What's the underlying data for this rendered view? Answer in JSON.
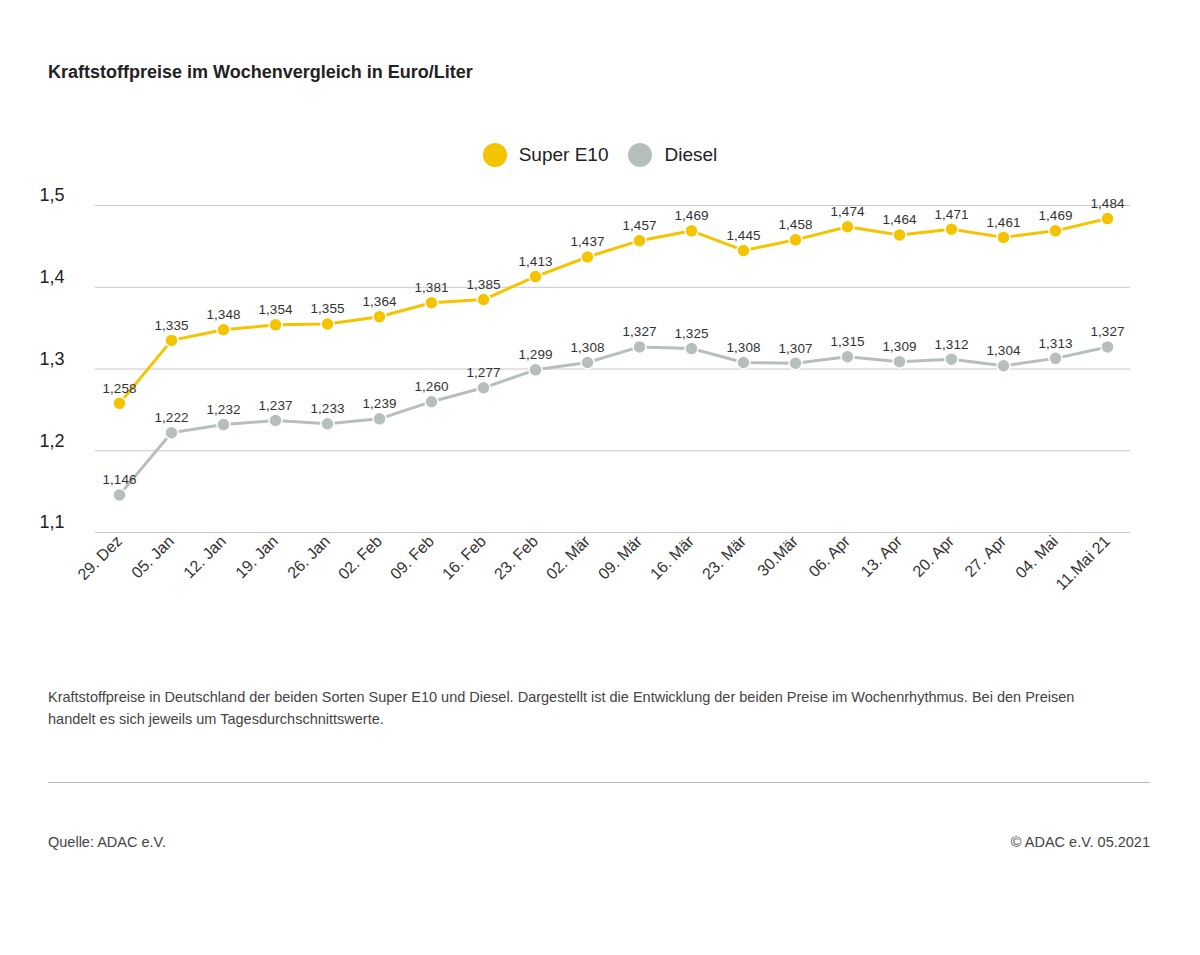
{
  "chart_data": {
    "type": "line",
    "title": "Kraftstoffpreise im Wochenvergleich in Euro/Liter",
    "caption": "Kraftstoffpreise in Deutschland der beiden Sorten Super E10 und Diesel. Dargestellt ist die Entwicklung der beiden Preise im Wochenrhythmus. Bei den Preisen handelt es sich jeweils um Tagesdurchschnittswerte.",
    "source": "Quelle: ADAC e.V.",
    "copyright": "© ADAC e.V. 05.2021",
    "categories": [
      "29. Dez",
      "05. Jan",
      "12. Jan",
      "19. Jan",
      "26. Jan",
      "02. Feb",
      "09. Feb",
      "16. Feb",
      "23. Feb",
      "02. Mär",
      "09. Mär",
      "16. Mär",
      "23. Mär",
      "30.Mär",
      "06. Apr",
      "13. Apr",
      "20. Apr",
      "27. Apr",
      "04. Mai",
      "11.Mai 21"
    ],
    "series": [
      {
        "name": "Super E10",
        "color": "#f5c400",
        "marker": "circle",
        "values": [
          1.258,
          1.335,
          1.348,
          1.354,
          1.355,
          1.364,
          1.381,
          1.385,
          1.413,
          1.437,
          1.457,
          1.469,
          1.445,
          1.458,
          1.474,
          1.464,
          1.471,
          1.461,
          1.469,
          1.484
        ],
        "value_labels": [
          "1,258",
          "1,335",
          "1,348",
          "1,354",
          "1,355",
          "1,364",
          "1,381",
          "1,385",
          "1,413",
          "1,437",
          "1,457",
          "1,469",
          "1,445",
          "1,458",
          "1,474",
          "1,464",
          "1,471",
          "1,461",
          "1,469",
          "1,484"
        ]
      },
      {
        "name": "Diesel",
        "color": "#b7bfbe",
        "marker": "circle",
        "values": [
          1.146,
          1.222,
          1.232,
          1.237,
          1.233,
          1.239,
          1.26,
          1.277,
          1.299,
          1.308,
          1.327,
          1.325,
          1.308,
          1.307,
          1.315,
          1.309,
          1.312,
          1.304,
          1.313,
          1.327
        ],
        "value_labels": [
          "1,146",
          "1,222",
          "1,232",
          "1,237",
          "1,233",
          "1,239",
          "1,260",
          "1,277",
          "1,299",
          "1,308",
          "1,327",
          "1,325",
          "1,308",
          "1,307",
          "1,315",
          "1,309",
          "1,312",
          "1,304",
          "1,313",
          "1,327"
        ]
      }
    ],
    "ylim": [
      1.1,
      1.5
    ],
    "yticks": [
      {
        "value": 1.1,
        "label": "1,1"
      },
      {
        "value": 1.2,
        "label": "1,2"
      },
      {
        "value": 1.3,
        "label": "1,3"
      },
      {
        "value": 1.4,
        "label": "1,4"
      },
      {
        "value": 1.5,
        "label": "1,5"
      }
    ],
    "grid": true,
    "legend": "top",
    "data_labels": true
  }
}
